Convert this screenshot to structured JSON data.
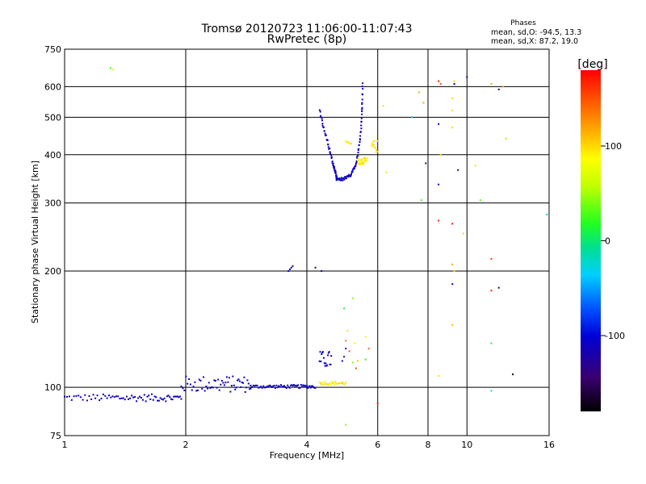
{
  "chart_data": {
    "type": "scatter",
    "title": "Tromsø 20120723 11:06:00-11:07:43",
    "subtitle": "RwPretec (8p)",
    "xlabel": "Frequency [MHz]",
    "ylabel": "Stationary phase Virtual Height [km]",
    "xscale": "log2",
    "yscale": "log",
    "xlim": [
      1,
      16
    ],
    "ylim": [
      75,
      750
    ],
    "x_ticks": [
      1,
      2,
      4,
      6,
      8,
      10,
      16
    ],
    "x_tick_labels": [
      "1",
      "2",
      "4",
      "6",
      "8",
      "10",
      "16"
    ],
    "y_ticks": [
      75,
      100,
      200,
      300,
      400,
      500,
      600,
      750
    ],
    "y_tick_labels": [
      "75",
      "100",
      "200",
      "300",
      "400",
      "500",
      "600",
      "750"
    ],
    "grid": true,
    "phase_box": {
      "title": "Phases",
      "line_o": "mean, sd,O:  -94.5,  13.3",
      "line_x": "mean, sd,X:   87.2,  19.0"
    },
    "colorbar": {
      "label": "[deg]",
      "range": [
        -180,
        180
      ],
      "ticks": [
        100,
        0,
        -100
      ],
      "tick_labels": [
        "100",
        "0",
        "-100"
      ]
    },
    "series": [
      {
        "name": "E layer trace",
        "segments": [
          {
            "x0": 1.0,
            "x1": 1.95,
            "h": 94.0,
            "dh": 2.0,
            "phase": -110,
            "n": 70
          },
          {
            "x0": 1.95,
            "x1": 2.9,
            "h": 102.0,
            "dh": 5.0,
            "phase": -110,
            "n": 55
          },
          {
            "x0": 2.9,
            "x1": 4.2,
            "h": 100.5,
            "dh": 1.0,
            "phase": -110,
            "n": 60
          },
          {
            "x0": 4.3,
            "x1": 5.0,
            "h": 102.5,
            "dh": 1.0,
            "phase": 95,
            "n": 30
          },
          {
            "x0": 4.3,
            "x1": 4.6,
            "h": 118.0,
            "dh": 6.0,
            "phase": -110,
            "n": 18
          }
        ]
      },
      {
        "name": "F layer O-mode trace",
        "curve": {
          "start_x": 4.3,
          "start_h": 520,
          "min_x": 4.75,
          "min_h": 345,
          "end_x": 5.5,
          "end_h": 610,
          "phase": -110,
          "n": 130
        }
      },
      {
        "name": "F layer X-mode trace",
        "segments": [
          {
            "x0": 5.35,
            "x1": 5.65,
            "h": 385.0,
            "dh": 8.0,
            "phase": 95,
            "n": 30
          },
          {
            "x0": 5.8,
            "x1": 6.0,
            "h": 420.0,
            "dh": 15.0,
            "phase": 95,
            "n": 12
          },
          {
            "x0": 5.0,
            "x1": 5.15,
            "h": 430.0,
            "dh": 5.0,
            "phase": 95,
            "n": 6
          }
        ]
      },
      {
        "name": "Sporadic echoes",
        "points": [
          {
            "x": 1.3,
            "h": 670,
            "phase": 20
          },
          {
            "x": 1.32,
            "h": 665,
            "phase": 95
          },
          {
            "x": 3.6,
            "h": 200,
            "phase": -110
          },
          {
            "x": 3.63,
            "h": 202,
            "phase": -110
          },
          {
            "x": 3.66,
            "h": 204,
            "phase": -110
          },
          {
            "x": 3.69,
            "h": 206,
            "phase": -130
          },
          {
            "x": 4.2,
            "h": 204,
            "phase": -160
          },
          {
            "x": 4.35,
            "h": 200,
            "phase": -110
          },
          {
            "x": 4.95,
            "h": 160,
            "phase": 10
          },
          {
            "x": 5.2,
            "h": 170,
            "phase": 40
          },
          {
            "x": 5.05,
            "h": 140,
            "phase": 100
          },
          {
            "x": 5.0,
            "h": 132,
            "phase": 140
          },
          {
            "x": 5.0,
            "h": 126,
            "phase": -110
          },
          {
            "x": 5.1,
            "h": 124,
            "phase": 150
          },
          {
            "x": 4.95,
            "h": 120,
            "phase": -110
          },
          {
            "x": 4.9,
            "h": 117,
            "phase": -120
          },
          {
            "x": 5.25,
            "h": 130,
            "phase": 90
          },
          {
            "x": 5.3,
            "h": 112,
            "phase": 150
          },
          {
            "x": 5.35,
            "h": 117,
            "phase": 110
          },
          {
            "x": 5.2,
            "h": 116,
            "phase": 40
          },
          {
            "x": 5.0,
            "h": 80,
            "phase": 40
          },
          {
            "x": 5.6,
            "h": 135,
            "phase": 90
          },
          {
            "x": 5.7,
            "h": 126,
            "phase": 140
          },
          {
            "x": 5.6,
            "h": 118,
            "phase": 20
          },
          {
            "x": 6.0,
            "h": 91,
            "phase": 170
          },
          {
            "x": 6.2,
            "h": 535,
            "phase": 100
          },
          {
            "x": 6.3,
            "h": 360,
            "phase": 95
          },
          {
            "x": 7.3,
            "h": 500,
            "phase": -40
          },
          {
            "x": 7.6,
            "h": 580,
            "phase": 120
          },
          {
            "x": 7.8,
            "h": 545,
            "phase": 120
          },
          {
            "x": 7.9,
            "h": 380,
            "phase": -150
          },
          {
            "x": 7.7,
            "h": 305,
            "phase": 20
          },
          {
            "x": 8.5,
            "h": 620,
            "phase": 170
          },
          {
            "x": 8.6,
            "h": 610,
            "phase": 150
          },
          {
            "x": 8.5,
            "h": 480,
            "phase": -110
          },
          {
            "x": 8.6,
            "h": 400,
            "phase": 100
          },
          {
            "x": 8.5,
            "h": 335,
            "phase": -110
          },
          {
            "x": 8.5,
            "h": 270,
            "phase": 170
          },
          {
            "x": 8.5,
            "h": 107,
            "phase": 100
          },
          {
            "x": 9.2,
            "h": 560,
            "phase": 100
          },
          {
            "x": 9.2,
            "h": 520,
            "phase": 100
          },
          {
            "x": 9.2,
            "h": 470,
            "phase": 100
          },
          {
            "x": 9.3,
            "h": 620,
            "phase": 100
          },
          {
            "x": 9.3,
            "h": 610,
            "phase": -110
          },
          {
            "x": 9.5,
            "h": 365,
            "phase": -150
          },
          {
            "x": 9.2,
            "h": 265,
            "phase": 175
          },
          {
            "x": 9.2,
            "h": 208,
            "phase": 120
          },
          {
            "x": 9.2,
            "h": 185,
            "phase": -110
          },
          {
            "x": 9.3,
            "h": 200,
            "phase": 100
          },
          {
            "x": 9.2,
            "h": 145,
            "phase": 110
          },
          {
            "x": 9.8,
            "h": 250,
            "phase": 100
          },
          {
            "x": 10.0,
            "h": 635,
            "phase": -110
          },
          {
            "x": 10.5,
            "h": 375,
            "phase": 100
          },
          {
            "x": 10.8,
            "h": 305,
            "phase": 30
          },
          {
            "x": 11.5,
            "h": 610,
            "phase": 120
          },
          {
            "x": 12.0,
            "h": 590,
            "phase": -160
          },
          {
            "x": 12.3,
            "h": 600,
            "phase": 120
          },
          {
            "x": 11.5,
            "h": 215,
            "phase": 160
          },
          {
            "x": 11.5,
            "h": 178,
            "phase": 170
          },
          {
            "x": 12.0,
            "h": 181,
            "phase": -150
          },
          {
            "x": 11.5,
            "h": 130,
            "phase": 20
          },
          {
            "x": 11.5,
            "h": 98,
            "phase": -30
          },
          {
            "x": 12.5,
            "h": 440,
            "phase": 50
          },
          {
            "x": 13.0,
            "h": 108,
            "phase": -175
          },
          {
            "x": 15.8,
            "h": 280,
            "phase": -40
          }
        ]
      }
    ]
  }
}
